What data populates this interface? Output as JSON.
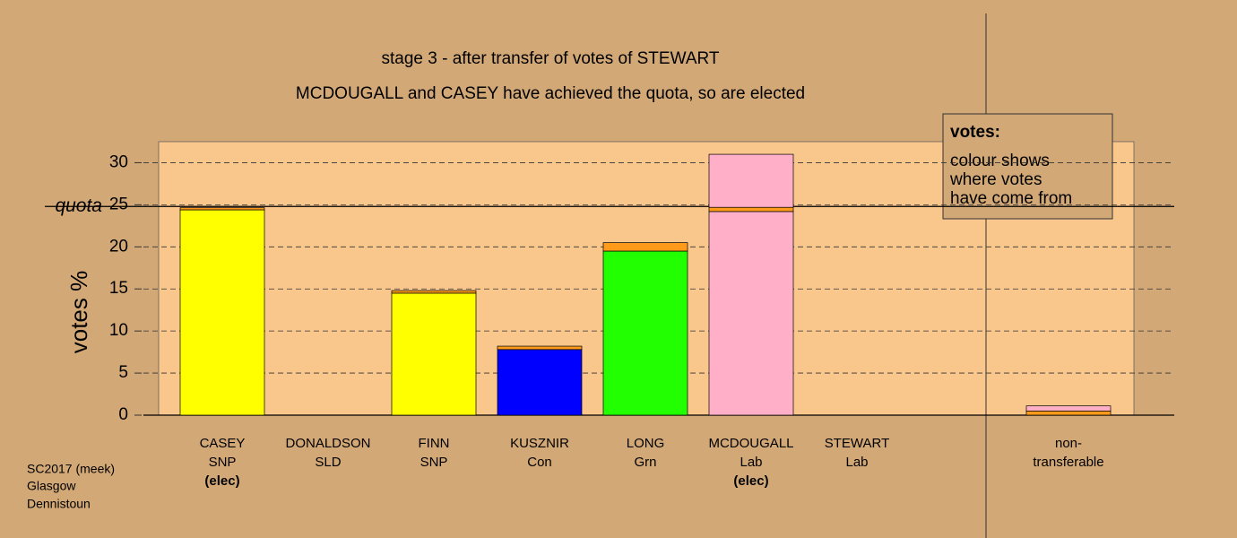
{
  "chart_data": {
    "type": "bar",
    "stacked": true,
    "title": "stage 3 - after transfer of votes of STEWART",
    "subtitle": "MCDOUGALL and CASEY have achieved the quota, so are elected",
    "y_label": "votes %",
    "categories": [
      "CASEY",
      "DONALDSON",
      "FINN",
      "KUSZNIR",
      "LONG",
      "MCDOUGALL",
      "STEWART",
      "non-"
    ],
    "category_lines2": [
      "SNP",
      "SLD",
      "SNP",
      "Con",
      "Grn",
      "Lab",
      "Lab",
      "transferable"
    ],
    "category_notes": [
      "(elec)",
      null,
      null,
      null,
      null,
      "(elec)",
      null,
      null
    ],
    "series": [
      {
        "values": [
          24.4,
          0,
          14.5,
          7.8,
          19.5,
          24.2,
          0,
          0.5
        ],
        "colors": [
          "#ffff00",
          "#ffff00",
          "#ffff00",
          "#0000ff",
          "#22ff00",
          "#ffb0c8",
          "#ffb0c8",
          "#ff9a1a"
        ]
      },
      {
        "values": [
          0.25,
          0,
          0.3,
          0.4,
          1.0,
          0.5,
          0,
          0.6
        ],
        "colors": [
          "#ff9a1a",
          "#ff9a1a",
          "#ff9a1a",
          "#ff9a1a",
          "#ff9a1a",
          "#ff9a1a",
          "#ff9a1a",
          "#ffb0c8"
        ]
      },
      {
        "values": [
          0,
          0,
          0,
          0,
          0,
          6.3,
          0,
          0
        ],
        "colors": [
          "#ffb0c8",
          "#ffb0c8",
          "#ffb0c8",
          "#ffb0c8",
          "#ffb0c8",
          "#ffb0c8",
          "#ffb0c8",
          "#ffb0c8"
        ]
      }
    ],
    "ylim": [
      0,
      32.5
    ],
    "yticks": [
      0,
      5,
      10,
      15,
      20,
      25,
      30
    ],
    "quota": {
      "value": 24.8,
      "label": "quota"
    },
    "info_box": {
      "title": "votes:",
      "lines": [
        "colour shows",
        "where votes",
        "have come from"
      ]
    },
    "footer": [
      "SC2017 (meek)",
      "Glasgow",
      "Dennistoun"
    ],
    "grid": true
  }
}
